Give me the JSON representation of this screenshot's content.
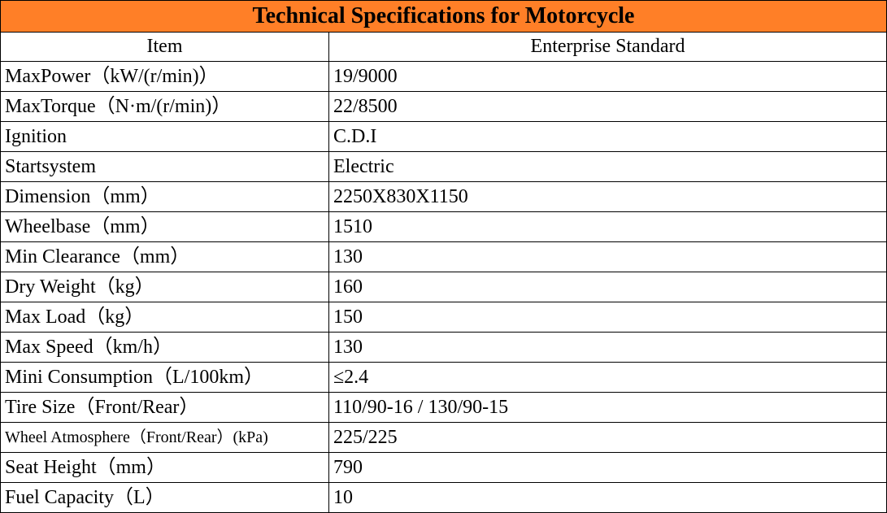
{
  "title": "Technical Specifications for Motorcycle",
  "colors": {
    "title_background": "#ff7f27",
    "border": "#000000"
  },
  "headers": {
    "item": "Item",
    "standard": "Enterprise Standard"
  },
  "rows": [
    {
      "item": "MaxPower（kW/(r/min)）",
      "value": "19/9000"
    },
    {
      "item": "MaxTorque（N·m/(r/min)）",
      "value": "22/8500"
    },
    {
      "item": "Ignition",
      "value": "C.D.I"
    },
    {
      "item": "Startsystem",
      "value": "Electric"
    },
    {
      "item": "Dimension（mm）",
      "value": "2250X830X1150"
    },
    {
      "item": "Wheelbase（mm）",
      "value": "1510"
    },
    {
      "item": "Min Clearance（mm）",
      "value": "130"
    },
    {
      "item": "Dry Weight（kg）",
      "value": "160"
    },
    {
      "item": "Max Load（kg）",
      "value": "150"
    },
    {
      "item": "Max Speed（km/h）",
      "value": "130"
    },
    {
      "item": "Mini Consumption（L/100km）",
      "value": "≤2.4"
    },
    {
      "item": "Tire Size（Front/Rear）",
      "value": "110/90-16  /  130/90-15"
    },
    {
      "item": "Wheel Atmosphere（Front/Rear）(kPa)",
      "value": "225/225"
    },
    {
      "item": "Seat Height（mm）",
      "value": "790"
    },
    {
      "item": "Fuel Capacity（L）",
      "value": "10"
    }
  ]
}
